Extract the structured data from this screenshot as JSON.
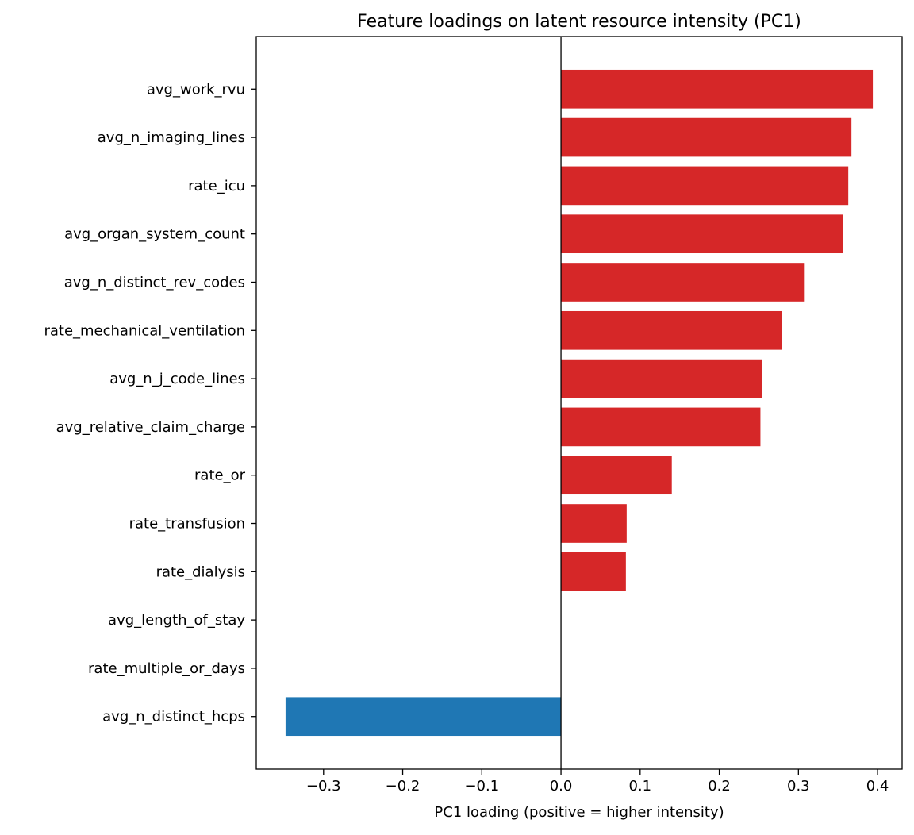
{
  "chart_data": {
    "type": "bar",
    "orientation": "horizontal",
    "title": "Feature loadings on latent resource intensity (PC1)",
    "xlabel": "PC1 loading (positive = higher intensity)",
    "ylabel": "",
    "xlim": [
      -0.385,
      0.431
    ],
    "xticks": [
      -0.3,
      -0.2,
      -0.1,
      0.0,
      0.1,
      0.2,
      0.3,
      0.4
    ],
    "xtick_labels": [
      "−0.3",
      "−0.2",
      "−0.1",
      "0.0",
      "0.1",
      "0.2",
      "0.3",
      "0.4"
    ],
    "grid": false,
    "zero_line": true,
    "colors": {
      "positive": "#d62728",
      "negative": "#1f77b4"
    },
    "categories": [
      "avg_work_rvu",
      "avg_n_imaging_lines",
      "rate_icu",
      "avg_organ_system_count",
      "avg_n_distinct_rev_codes",
      "rate_mechanical_ventilation",
      "avg_n_j_code_lines",
      "avg_relative_claim_charge",
      "rate_or",
      "rate_transfusion",
      "rate_dialysis",
      "avg_length_of_stay",
      "rate_multiple_or_days",
      "avg_n_distinct_hcps"
    ],
    "values": [
      0.394,
      0.367,
      0.363,
      0.356,
      0.307,
      0.279,
      0.254,
      0.252,
      0.14,
      0.083,
      0.082,
      0.0,
      0.0,
      -0.348
    ]
  }
}
